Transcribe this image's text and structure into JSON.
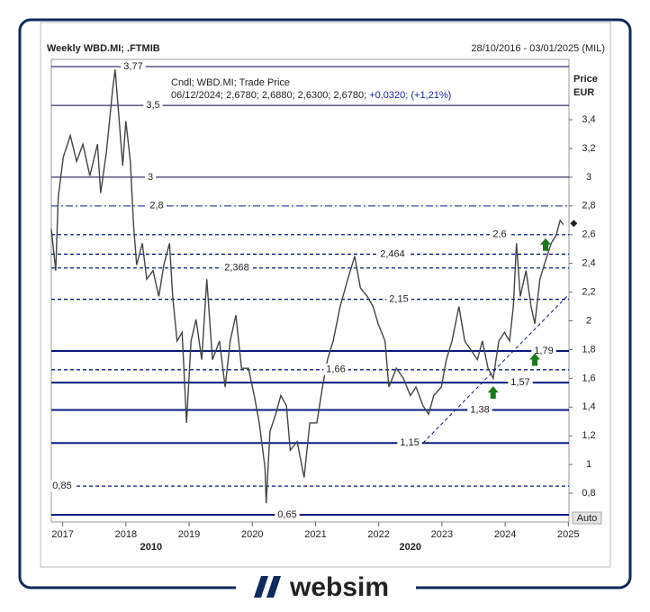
{
  "chart_data": {
    "type": "line",
    "title": "Weekly WBD.MI; .FTMIB",
    "date_range": "28/10/2016 - 03/01/2025 (MIL)",
    "info_line_1": "Cndl; WBD.MI; Trade Price",
    "info_line_2": "06/12/2024; 2,6780; 2,6880; 2,6300; 2,6780;",
    "info_change": "+0,0320; (+1,21%)",
    "y_axis_title": "Price",
    "y_axis_unit": "EUR",
    "scale_mode": "Auto",
    "decade_labels": [
      {
        "value": 2018.4,
        "label": "2010"
      },
      {
        "value": 2022.5,
        "label": "2020"
      }
    ],
    "xlim": [
      2016.82,
      2025.01
    ],
    "ylim": [
      0.6,
      3.82
    ],
    "xticks": [
      2017,
      2018,
      2019,
      2020,
      2021,
      2022,
      2023,
      2024,
      2025
    ],
    "yticks": [
      {
        "value": 0.8,
        "label": "0,8"
      },
      1,
      {
        "value": 1.2,
        "label": "1,2"
      },
      {
        "value": 1.4,
        "label": "1,4"
      },
      {
        "value": 1.6,
        "label": "1,6"
      },
      {
        "value": 1.8,
        "label": "1,8"
      },
      2,
      {
        "value": 2.2,
        "label": "2,2"
      },
      {
        "value": 2.4,
        "label": "2,4"
      },
      {
        "value": 2.6,
        "label": "2,6"
      },
      {
        "value": 2.8,
        "label": "2,8"
      },
      3,
      {
        "value": 3.2,
        "label": "3,2"
      },
      {
        "value": 3.4,
        "label": "3,4"
      }
    ],
    "series": [
      {
        "name": "WBD.MI",
        "color": "#444444",
        "x": [
          2016.82,
          2016.89,
          2016.93,
          2017.01,
          2017.12,
          2017.22,
          2017.32,
          2017.43,
          2017.55,
          2017.6,
          2017.69,
          2017.79,
          2017.83,
          2017.89,
          2017.95,
          2018.0,
          2018.07,
          2018.12,
          2018.17,
          2018.26,
          2018.33,
          2018.43,
          2018.52,
          2018.6,
          2018.69,
          2018.74,
          2018.81,
          2018.89,
          2018.96,
          2019.03,
          2019.11,
          2019.2,
          2019.28,
          2019.37,
          2019.48,
          2019.57,
          2019.65,
          2019.74,
          2019.83,
          2019.94,
          2020.03,
          2020.11,
          2020.2,
          2020.22,
          2020.28,
          2020.37,
          2020.45,
          2020.54,
          2020.6,
          2020.71,
          2020.82,
          2020.91,
          2021.02,
          2021.11,
          2021.19,
          2021.28,
          2021.39,
          2021.51,
          2021.62,
          2021.71,
          2021.82,
          2021.91,
          2021.99,
          2022.1,
          2022.16,
          2022.28,
          2022.39,
          2022.5,
          2022.59,
          2022.7,
          2022.79,
          2022.87,
          2022.99,
          2023.07,
          2023.16,
          2023.27,
          2023.36,
          2023.47,
          2023.56,
          2023.64,
          2023.73,
          2023.81,
          2023.9,
          2023.99,
          2024.07,
          2024.13,
          2024.18,
          2024.24,
          2024.33,
          2024.41,
          2024.47,
          2024.55,
          2024.64,
          2024.73,
          2024.81,
          2024.87,
          2024.92
        ],
        "values": [
          2.64,
          2.35,
          2.86,
          3.14,
          3.29,
          3.11,
          3.23,
          3.01,
          3.23,
          2.89,
          3.17,
          3.61,
          3.75,
          3.42,
          3.08,
          3.39,
          3.11,
          2.67,
          2.39,
          2.54,
          2.29,
          2.35,
          2.17,
          2.39,
          2.54,
          2.17,
          1.86,
          1.92,
          1.29,
          1.86,
          2.01,
          1.73,
          2.29,
          1.73,
          1.86,
          1.54,
          1.86,
          2.04,
          1.67,
          1.67,
          1.48,
          1.29,
          0.98,
          0.73,
          1.23,
          1.35,
          1.48,
          1.41,
          1.1,
          1.16,
          0.91,
          1.29,
          1.29,
          1.54,
          1.73,
          1.86,
          2.1,
          2.29,
          2.45,
          2.23,
          2.17,
          2.1,
          1.98,
          1.86,
          1.54,
          1.67,
          1.6,
          1.48,
          1.54,
          1.41,
          1.35,
          1.48,
          1.54,
          1.73,
          1.86,
          2.1,
          1.86,
          1.79,
          1.73,
          1.86,
          1.67,
          1.6,
          1.86,
          1.92,
          1.86,
          2.1,
          2.54,
          2.17,
          2.35,
          2.1,
          1.98,
          2.29,
          2.42,
          2.54,
          2.6,
          2.7,
          2.67
        ]
      }
    ],
    "last_price": {
      "x": 2025.0,
      "y": 2.678
    },
    "levels": [
      {
        "value": 3.77,
        "label": "3,77",
        "style": "thin"
      },
      {
        "value": 3.5,
        "label": "3,5",
        "style": "thin"
      },
      {
        "value": 3,
        "label": "3",
        "style": "thin"
      },
      {
        "value": 2.8,
        "label": "2,8",
        "style": "dashdot"
      },
      {
        "value": 2.6,
        "label": "2,6",
        "style": "dashed"
      },
      {
        "value": 2.464,
        "label": "2,464",
        "style": "dashed"
      },
      {
        "value": 2.368,
        "label": "2,368",
        "style": "dashed"
      },
      {
        "value": 2.15,
        "label": "2,15",
        "style": "dashed"
      },
      {
        "value": 1.79,
        "label": "1,79",
        "style": "thick"
      },
      {
        "value": 1.66,
        "label": "1,66",
        "style": "dashed"
      },
      {
        "value": 1.57,
        "label": "1,57",
        "style": "thick"
      },
      {
        "value": 1.38,
        "label": "1,38",
        "style": "thick"
      },
      {
        "value": 1.15,
        "label": "1,15",
        "style": "thick"
      },
      {
        "value": 0.85,
        "label": "0,85",
        "style": "dashed"
      },
      {
        "value": 0.65,
        "label": "0,65",
        "style": "thick"
      }
    ],
    "trendline": {
      "x": [
        2022.7,
        2025.0
      ],
      "y": [
        1.15,
        2.18
      ]
    },
    "signals": {
      "color": "#1a7a1a",
      "x": [
        2023.81,
        2024.47,
        2024.64
      ],
      "y": [
        1.57,
        1.8,
        2.6
      ]
    }
  },
  "footer": {
    "brand": "websim"
  }
}
